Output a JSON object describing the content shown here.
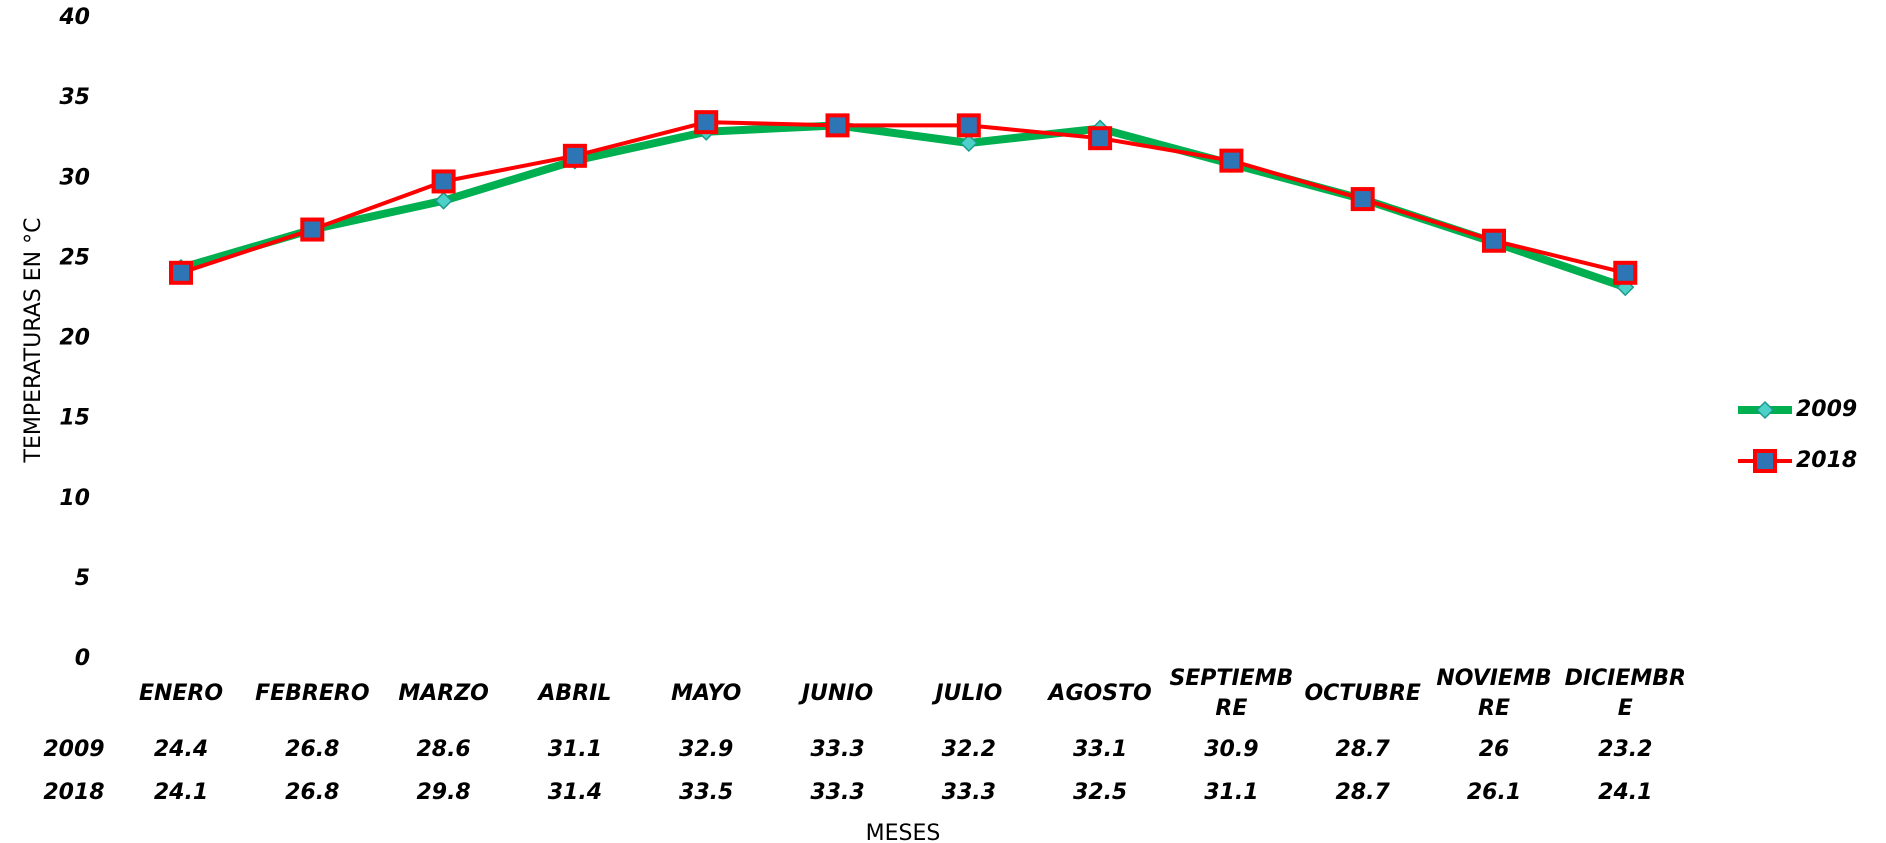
{
  "chart_data": {
    "type": "line",
    "y_label": "TEMPERATURAS EN °C",
    "x_label": "MESES",
    "categories": [
      "ENERO",
      "FEBRERO",
      "MARZO",
      "ABRIL",
      "MAYO",
      "JUNIO",
      "JULIO",
      "AGOSTO",
      "SEPTIEMBRE",
      "OCTUBRE",
      "NOVIEMBRE",
      "DICIEMBRE"
    ],
    "series": [
      {
        "name": "2009",
        "color": "#00b050",
        "marker_color": "#4dd0c8",
        "values": [
          24.4,
          26.8,
          28.6,
          31.1,
          32.9,
          33.3,
          32.2,
          33.1,
          30.9,
          28.7,
          26,
          23.2
        ]
      },
      {
        "name": "2018",
        "color": "#ff0000",
        "marker_color": "#2e75b6",
        "values": [
          24.1,
          26.8,
          29.8,
          31.4,
          33.5,
          33.3,
          33.3,
          32.5,
          31.1,
          28.7,
          26.1,
          24.1
        ]
      }
    ],
    "ylim": [
      0,
      40
    ],
    "yticks": [
      0,
      5,
      10,
      15,
      20,
      25,
      30,
      35,
      40
    ],
    "grid": false,
    "legend": "right",
    "data_table": true
  }
}
